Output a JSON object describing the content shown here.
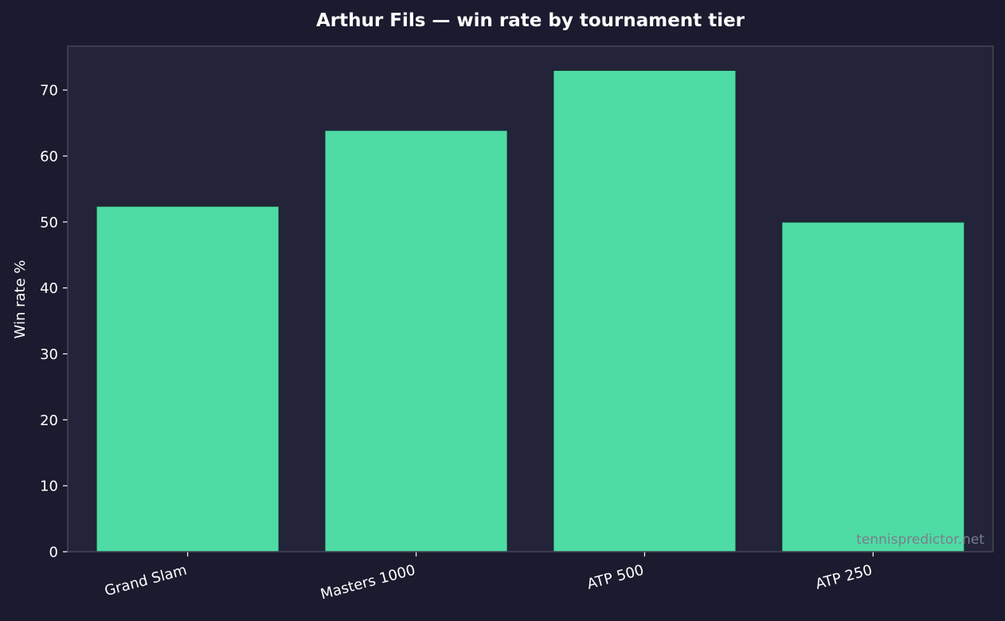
{
  "colors": {
    "figure_background": "#1b1b2f",
    "plot_background": "#23243a",
    "bar_fill": "#4edca4",
    "bar_edge": "#1b2a33",
    "text": "#ffffff",
    "watermark": "#7a7d8c"
  },
  "watermark": "tennispredictor.net",
  "chart_data": {
    "type": "bar",
    "title": "Arthur Fils — win rate by tournament tier",
    "xlabel": "",
    "ylabel": "Win rate %",
    "categories": [
      "Grand Slam",
      "Masters 1000",
      "ATP 500",
      "ATP 250"
    ],
    "values": [
      52.4,
      63.9,
      73.0,
      50.0
    ],
    "ylim": [
      0,
      76.65
    ],
    "yticks": [
      0,
      10,
      20,
      30,
      40,
      50,
      60,
      70
    ],
    "grid": false,
    "legend": "none"
  }
}
